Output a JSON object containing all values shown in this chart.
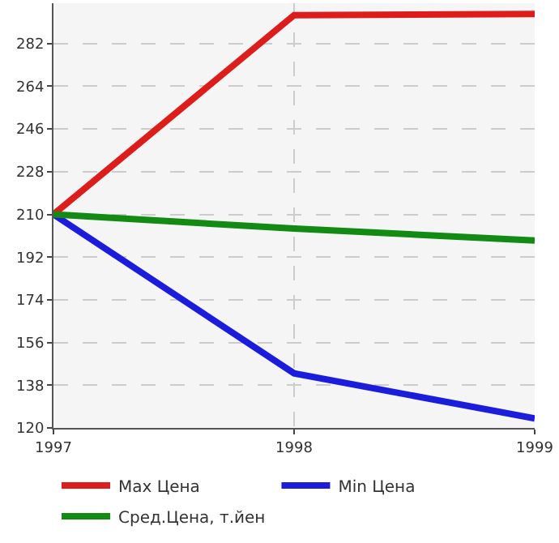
{
  "chart_data": {
    "type": "line",
    "x": [
      1997,
      1998,
      1999
    ],
    "series": [
      {
        "name": "Max Цена",
        "color": "#dd1c1c",
        "values": [
          210,
          294,
          294.5
        ]
      },
      {
        "name": "Min Цена",
        "color": "#1c1cdd",
        "values": [
          210,
          143,
          124
        ]
      },
      {
        "name": "Сред.Цена, т.йен",
        "color": "#138a13",
        "values": [
          210,
          204,
          199
        ]
      }
    ],
    "xlim": [
      1997,
      1999
    ],
    "xticks": [
      1997,
      1998,
      1999
    ],
    "ylim": [
      120,
      299
    ],
    "yticks": [
      120,
      138,
      156,
      174,
      192,
      210,
      228,
      246,
      264,
      282
    ],
    "grid": true,
    "legend": "bottom",
    "marker": "none",
    "line_style": "solid"
  }
}
